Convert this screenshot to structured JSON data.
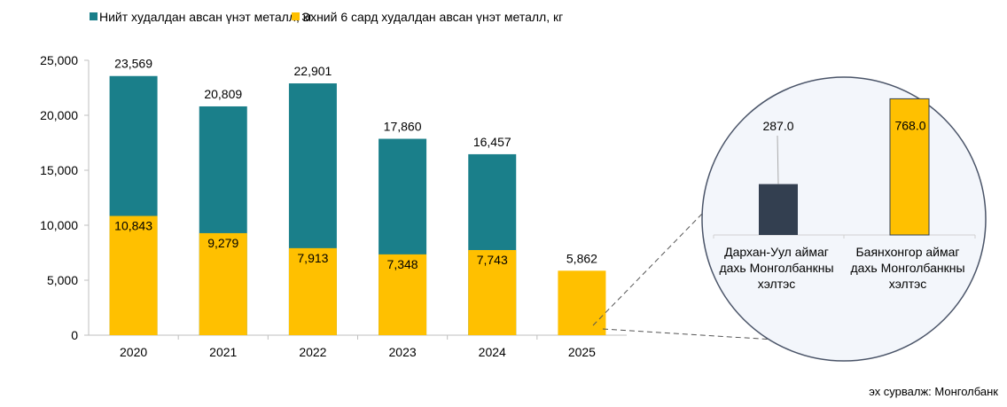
{
  "colors": {
    "total": "#1a7f8a",
    "six_month": "#ffc000",
    "darkhan": "#333f50",
    "circle_bg": "#f3f6fb",
    "circle_border": "#4a5468"
  },
  "source": "эх сурвалж: Монголбанк",
  "chart_data": [
    {
      "type": "bar",
      "title": "",
      "legend_position": "top",
      "categories": [
        "2020",
        "2021",
        "2022",
        "2023",
        "2024",
        "2025"
      ],
      "series": [
        {
          "name": "Нийт худалдан авсан үнэт металл, кг",
          "values": [
            23569,
            20809,
            22901,
            17860,
            16457,
            null
          ],
          "labels": [
            "23,569",
            "20,809",
            "22,901",
            "17,860",
            "16,457",
            ""
          ]
        },
        {
          "name": "Эхний 6 сард худалдан авсан үнэт металл, кг",
          "values": [
            10843,
            9279,
            7913,
            7348,
            7743,
            5862
          ],
          "labels": [
            "10,843",
            "9,279",
            "7,913",
            "7,348",
            "7,743",
            "5,862"
          ]
        }
      ],
      "ylim": [
        0,
        25000
      ],
      "yticks": [
        0,
        5000,
        10000,
        15000,
        20000,
        25000
      ],
      "ytick_labels": [
        "0",
        "5,000",
        "10,000",
        "15,000",
        "20,000",
        "25,000"
      ],
      "xlabel": "",
      "ylabel": "",
      "grid": false
    },
    {
      "type": "bar",
      "title": "",
      "categories": [
        "Дархан-Уул аймаг дахь Монголбанкны хэлтэс",
        "Баянхонгор аймаг дахь Монголбанкны хэлтэс"
      ],
      "category_lines": [
        [
          "Дархан-Уул аймаг",
          "дахь Монголбанкны",
          "хэлтэс"
        ],
        [
          "Баянхонгор аймаг",
          "дахь Монголбанкны",
          "хэлтэс"
        ]
      ],
      "values": [
        287.0,
        768.0
      ],
      "labels": [
        "287.0",
        "768.0"
      ]
    }
  ]
}
